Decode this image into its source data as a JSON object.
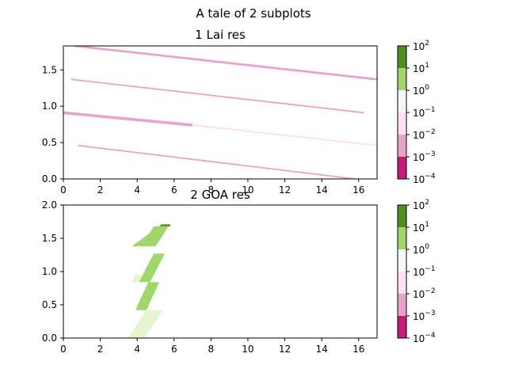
{
  "suptitle": "A tale of 2 subplots",
  "colorbar_ticks": [
    "10^2",
    "10^1",
    "10^0",
    "10^-1",
    "10^-2",
    "10^-3",
    "10^-4"
  ],
  "colorbar_levels": [
    {
      "from": "1e-4",
      "to": "1e-3",
      "color": "#c51b7d"
    },
    {
      "from": "1e-3",
      "to": "1e-2",
      "color": "#e9a3c9"
    },
    {
      "from": "1e-2",
      "to": "1e-1",
      "color": "#fde0ef"
    },
    {
      "from": "1e-1",
      "to": "1e0",
      "color": "#f7f7f7"
    },
    {
      "from": "1e0",
      "to": "1e1",
      "color": "#e6f5d0"
    },
    {
      "from": "1e1",
      "to": "1e2",
      "color": "#a1d76a"
    },
    {
      "from": "1e2",
      "to": "1e3",
      "color": "#4d9221"
    }
  ],
  "chart_data": [
    {
      "type": "heatmap",
      "title": "1 Lai res",
      "xlim": [
        0,
        17
      ],
      "ylim": [
        0,
        1.83
      ],
      "xticks": [
        0,
        2,
        4,
        6,
        8,
        10,
        12,
        14,
        16
      ],
      "yticks": [
        0.0,
        0.5,
        1.0,
        1.5
      ],
      "xticklabels": [
        "0",
        "2",
        "4",
        "6",
        "8",
        "10",
        "12",
        "14",
        "16"
      ],
      "yticklabels": [
        "0.0",
        "0.5",
        "1.0",
        "1.5"
      ],
      "colorscale": "log",
      "bands": [
        {
          "x_start": 0.6,
          "y_start": 1.83,
          "x_end": 17.0,
          "y_end": 1.37,
          "thickness": 0.03,
          "color": "#e9a3c9"
        },
        {
          "x_start": 0.4,
          "y_start": 1.37,
          "x_end": 16.3,
          "y_end": 0.91,
          "thickness": 0.02,
          "color": "#e9a3c9"
        },
        {
          "x_start": 0.0,
          "y_start": 0.91,
          "x_end": 7.0,
          "y_end": 0.74,
          "thickness": 0.04,
          "color": "#e9a3c9"
        },
        {
          "x_start": 7.0,
          "y_start": 0.74,
          "x_end": 17.0,
          "y_end": 0.46,
          "thickness": 0.02,
          "color": "#fde0ef"
        },
        {
          "x_start": 0.8,
          "y_start": 0.46,
          "x_end": 15.8,
          "y_end": 0.0,
          "thickness": 0.02,
          "color": "#e9a3c9"
        }
      ]
    },
    {
      "type": "heatmap",
      "title": "2 GOA res",
      "xlim": [
        0,
        17
      ],
      "ylim": [
        0,
        2.0
      ],
      "xticks": [
        0,
        2,
        4,
        6,
        8,
        10,
        12,
        14,
        16
      ],
      "yticks": [
        0.0,
        0.5,
        1.0,
        1.5,
        2.0
      ],
      "xticklabels": [
        "0",
        "2",
        "4",
        "6",
        "8",
        "10",
        "12",
        "14",
        "16"
      ],
      "yticklabels": [
        "0.0",
        "0.5",
        "1.0",
        "1.5",
        "2.0"
      ],
      "colorscale": "log",
      "patches": [
        {
          "points": [
            [
              4.2,
              1.38
            ],
            [
              4.9,
              1.68
            ],
            [
              5.7,
              1.68
            ],
            [
              5.0,
              1.38
            ]
          ],
          "color": "#a1d76a"
        },
        {
          "points": [
            [
              4.2,
              1.38
            ],
            [
              4.6,
              1.38
            ],
            [
              5.4,
              1.68
            ],
            [
              5.0,
              1.68
            ]
          ],
          "color": "#a1d76a"
        },
        {
          "points": [
            [
              4.2,
              1.38
            ],
            [
              5.7,
              1.68
            ],
            [
              5.2,
              1.68
            ],
            [
              3.7,
              1.38
            ]
          ],
          "color": "#a1d76a"
        },
        {
          "points": [
            [
              5.2,
              1.68
            ],
            [
              5.8,
              1.68
            ],
            [
              5.8,
              1.71
            ],
            [
              5.3,
              1.71
            ]
          ],
          "color": "#4d9221"
        },
        {
          "points": [
            [
              4.1,
              0.84
            ],
            [
              4.7,
              0.84
            ],
            [
              5.5,
              1.27
            ],
            [
              4.9,
              1.27
            ]
          ],
          "color": "#a1d76a"
        },
        {
          "points": [
            [
              3.7,
              0.84
            ],
            [
              4.1,
              0.84
            ],
            [
              4.3,
              0.95
            ],
            [
              3.9,
              0.95
            ]
          ],
          "color": "#e6f5d0"
        },
        {
          "points": [
            [
              3.9,
              0.42
            ],
            [
              4.5,
              0.42
            ],
            [
              5.2,
              0.84
            ],
            [
              4.6,
              0.84
            ]
          ],
          "color": "#a1d76a"
        },
        {
          "points": [
            [
              3.5,
              0.0
            ],
            [
              4.4,
              0.0
            ],
            [
              5.4,
              0.42
            ],
            [
              4.5,
              0.42
            ]
          ],
          "color": "#e6f5d0"
        }
      ]
    }
  ]
}
